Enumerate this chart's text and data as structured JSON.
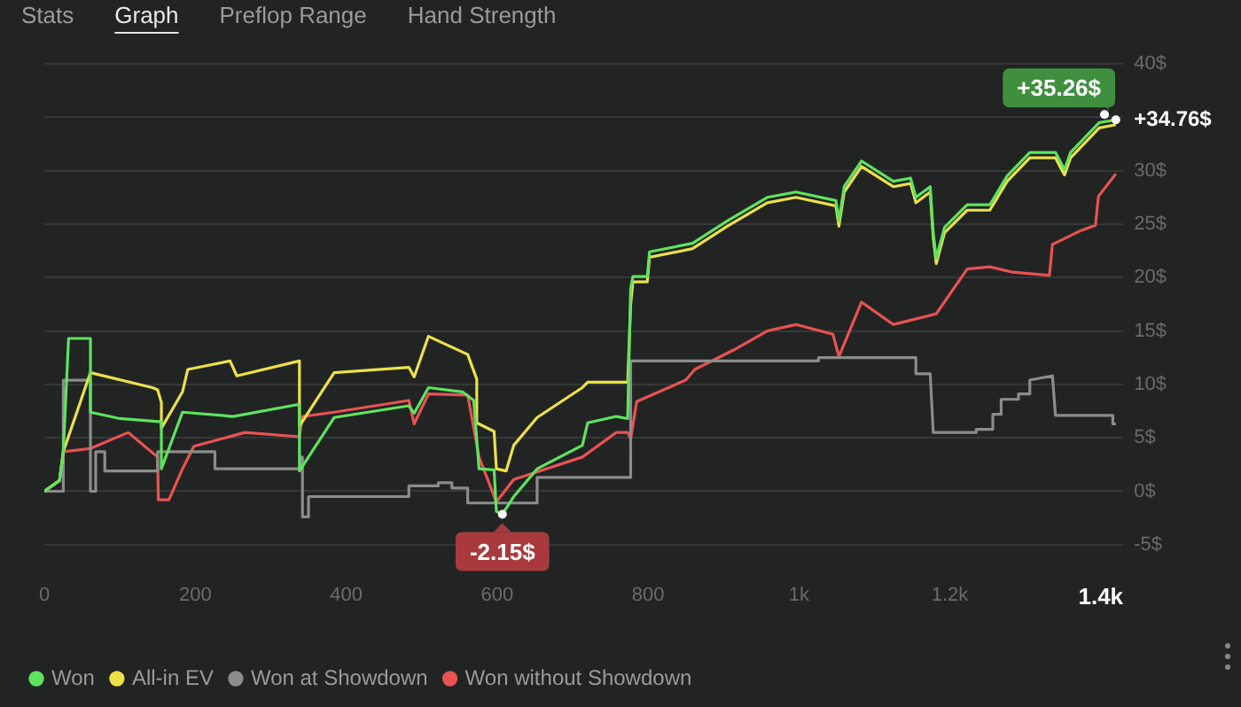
{
  "chart_data": {
    "type": "line",
    "xlim": [
      0,
      1430
    ],
    "xticks": [
      0,
      200,
      400,
      600,
      800,
      {
        "value": 1000,
        "label": "1k"
      },
      {
        "value": 1200,
        "label": "1.2k"
      },
      {
        "value": 1400,
        "label": "1.4k"
      }
    ],
    "ylim": [
      -5,
      40
    ],
    "yticks": [
      {
        "value": -5,
        "label": "-5$"
      },
      {
        "value": 0,
        "label": "0$"
      },
      {
        "value": 5,
        "label": "5$"
      },
      {
        "value": 10,
        "label": "10$"
      },
      {
        "value": 15,
        "label": "15$"
      },
      {
        "value": 20,
        "label": "20$"
      },
      {
        "value": 25,
        "label": "25$"
      },
      {
        "value": 30,
        "label": "30$"
      },
      {
        "value": 35,
        "label": null
      },
      {
        "value": 40,
        "label": "40$"
      }
    ],
    "grid": "y",
    "legend": "bottom left",
    "marker": "none",
    "line_style": "solid",
    "annotations": [
      "Stats",
      "Graph",
      "Preflop Range",
      "Hand Strength",
      {
        "text": "-2.15$",
        "x": 607,
        "y": -2.15
      },
      {
        "text": "+35.26$",
        "x": 1405,
        "y": 35.26
      },
      {
        "text": "+34.76$",
        "x": 1420,
        "y": 34.76
      }
    ],
    "series": [
      {
        "name": "Won",
        "color": "#5fe35f",
        "x": [
          0,
          20,
          25,
          32,
          61,
          61,
          100,
          155,
          155,
          183,
          250,
          335,
          338,
          338,
          384,
          483,
          490,
          509,
          554,
          569,
          576,
          596,
          599,
          607,
          622,
          653,
          713,
          720,
          758,
          773,
          777,
          780,
          799,
          802,
          859,
          905,
          958,
          996,
          1049,
          1053,
          1060,
          1083,
          1125,
          1148,
          1155,
          1174,
          1178,
          1182,
          1193,
          1223,
          1253,
          1276,
          1306,
          1340,
          1352,
          1360,
          1398,
          1420
        ],
        "values": [
          0,
          1,
          3.7,
          14.3,
          14.3,
          7.4,
          6.8,
          6.5,
          2.1,
          7.4,
          7,
          8.1,
          8.1,
          1.9,
          6.9,
          8,
          7.3,
          9.7,
          9.3,
          8.5,
          2.1,
          2,
          -1.9,
          -2.15,
          -0.5,
          2.1,
          4.3,
          6.4,
          7,
          6.8,
          19,
          20.1,
          20.1,
          22.4,
          23.2,
          25.3,
          27.5,
          28,
          27.2,
          25.3,
          28.5,
          30.9,
          29,
          29.3,
          27.5,
          28.5,
          24.2,
          21.8,
          24.7,
          26.8,
          26.8,
          29.5,
          31.7,
          31.7,
          30.1,
          31.7,
          34.5,
          34.76
        ]
      },
      {
        "name": "All-in EV",
        "color": "#ece04a",
        "x": [
          0,
          20,
          25,
          61,
          143,
          150,
          155,
          155,
          183,
          190,
          246,
          255,
          338,
          338,
          384,
          483,
          490,
          509,
          561,
          573,
          573,
          596,
          599,
          612,
          622,
          653,
          713,
          720,
          758,
          773,
          777,
          780,
          799,
          802,
          859,
          905,
          958,
          996,
          1049,
          1053,
          1060,
          1083,
          1125,
          1148,
          1155,
          1174,
          1178,
          1182,
          1193,
          1223,
          1253,
          1276,
          1306,
          1340,
          1352,
          1360,
          1398,
          1420
        ],
        "values": [
          0,
          1,
          3.7,
          11.1,
          9.7,
          9.5,
          8.3,
          5.9,
          9.3,
          11.4,
          12.2,
          10.8,
          12.2,
          6.1,
          11.1,
          11.6,
          10.7,
          14.5,
          12.8,
          10.5,
          6.4,
          5.6,
          2.1,
          1.9,
          4.3,
          6.9,
          9.7,
          10.2,
          10.2,
          10.2,
          17.5,
          19.6,
          19.6,
          21.9,
          22.7,
          24.8,
          27,
          27.5,
          26.7,
          24.8,
          28,
          30.4,
          28.5,
          28.8,
          27,
          28,
          23.7,
          21.3,
          24.2,
          26.3,
          26.3,
          29,
          31.2,
          31.2,
          29.6,
          31.2,
          34,
          34.3
        ]
      },
      {
        "name": "Won at Showdown",
        "color": "#8c8c8c",
        "x": [
          0,
          25,
          25,
          61,
          61,
          68,
          68,
          80,
          80,
          150,
          150,
          226,
          226,
          340,
          340,
          342,
          342,
          350,
          350,
          384,
          483,
          483,
          522,
          522,
          540,
          540,
          561,
          561,
          653,
          653,
          777,
          777,
          1026,
          1026,
          1152,
          1155,
          1155,
          1174,
          1178,
          1235,
          1235,
          1257,
          1257,
          1268,
          1268,
          1291,
          1291,
          1306,
          1306,
          1336,
          1340,
          1416,
          1416,
          1420
        ],
        "values": [
          0,
          0,
          10.4,
          10.4,
          0,
          0,
          3.7,
          3.7,
          1.9,
          1.9,
          3.7,
          3.7,
          2.1,
          2.1,
          3.2,
          3.2,
          -2.4,
          -2.4,
          -0.5,
          -0.5,
          -0.5,
          0.5,
          0.5,
          0.8,
          0.8,
          0.3,
          0.3,
          -1.1,
          -1.1,
          1.3,
          1.3,
          12.2,
          12.2,
          12.5,
          12.5,
          12.5,
          11,
          11,
          5.5,
          5.5,
          5.8,
          5.8,
          7.2,
          7.2,
          8.6,
          8.6,
          9.1,
          9.1,
          10.4,
          10.8,
          7.1,
          7.1,
          6.3,
          6.3
        ]
      },
      {
        "name": "Won without Showdown",
        "color": "#e95252",
        "x": [
          0,
          20,
          25,
          61,
          111,
          150,
          151,
          165,
          183,
          198,
          266,
          338,
          342,
          384,
          483,
          490,
          509,
          561,
          576,
          599,
          622,
          713,
          758,
          773,
          777,
          785,
          850,
          862,
          913,
          958,
          996,
          1045,
          1053,
          1083,
          1125,
          1182,
          1223,
          1253,
          1283,
          1332,
          1336,
          1374,
          1393,
          1397,
          1420
        ],
        "values": [
          0,
          1,
          3.7,
          4,
          5.5,
          3.2,
          -0.8,
          -0.8,
          2.1,
          4.2,
          5.5,
          5.1,
          7,
          7.4,
          8.5,
          6.3,
          9.1,
          9,
          3.2,
          -1,
          1.1,
          3.2,
          5.5,
          5.5,
          4.9,
          8.4,
          10.4,
          11.4,
          13.2,
          15,
          15.6,
          14.7,
          12.6,
          17.7,
          15.6,
          16.6,
          20.8,
          21,
          20.5,
          20.2,
          23.1,
          24.4,
          24.9,
          27.6,
          29.7
        ]
      }
    ]
  }
}
